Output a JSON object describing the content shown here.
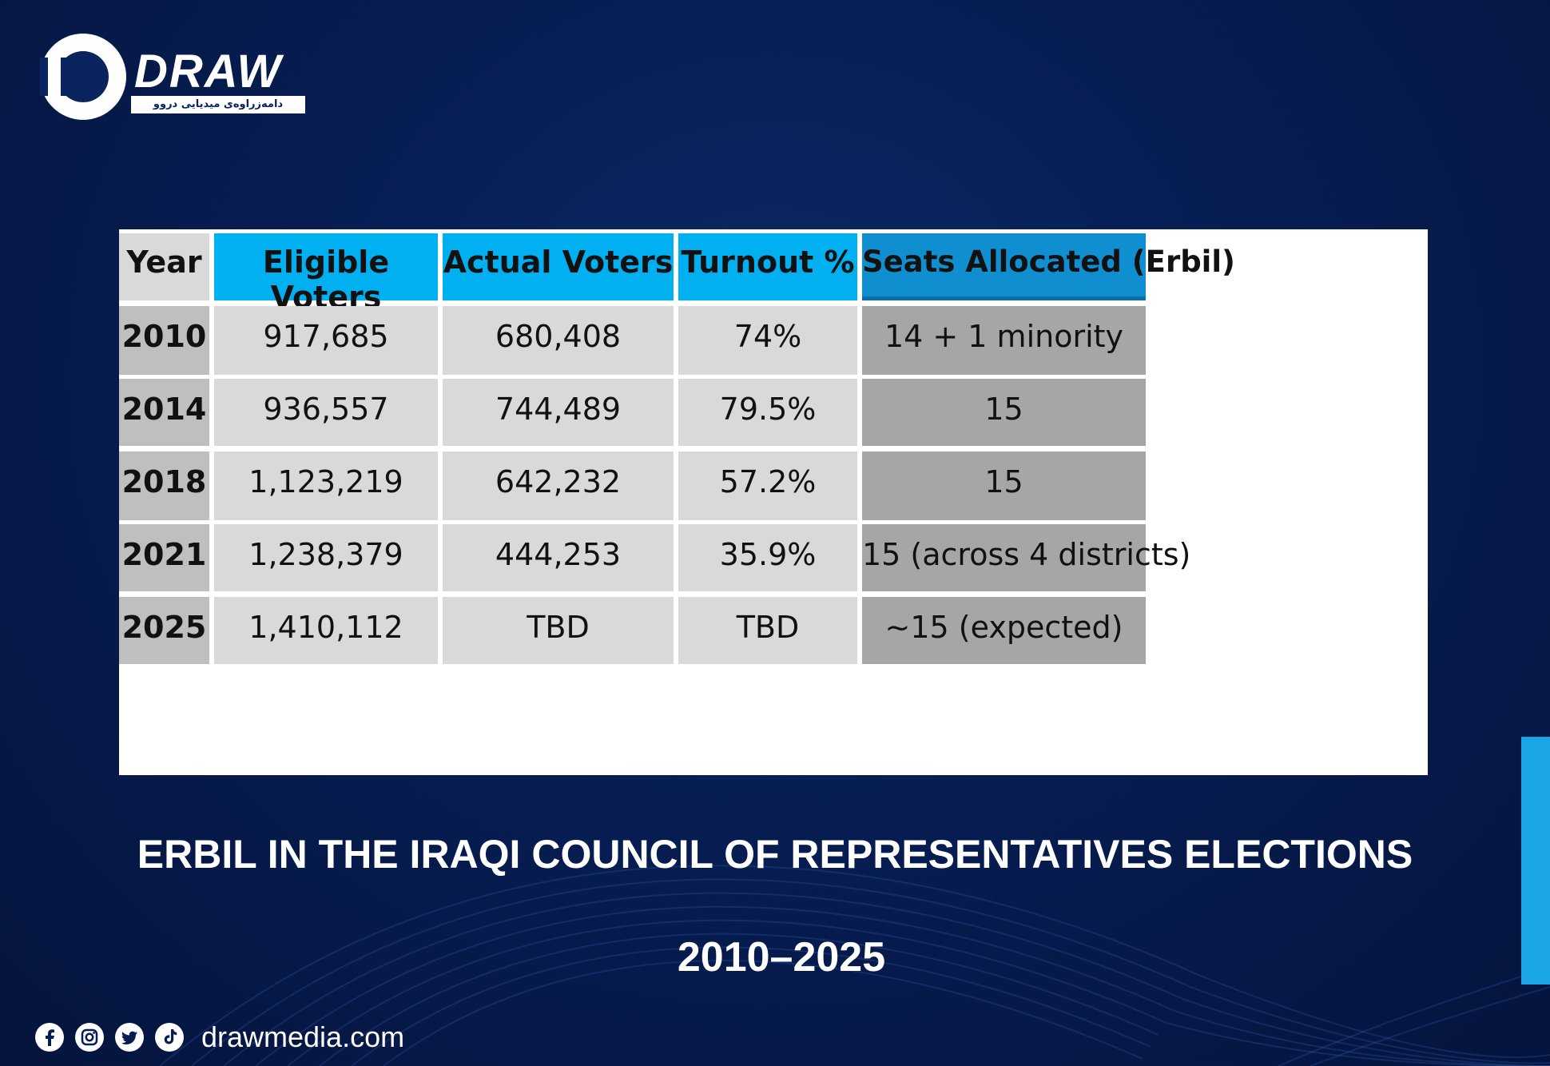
{
  "brand": {
    "logo_text": "DRAW",
    "logo_subtitle": "دامەزراوەی میدیایی دروو",
    "website": "drawmedia.com",
    "social_icons": [
      "facebook-icon",
      "instagram-icon",
      "twitter-icon",
      "tiktok-icon"
    ]
  },
  "colors": {
    "background": "#071d52",
    "header_blue": "#00b0f0",
    "header_dark_blue": "#0f8fd0",
    "cell_light": "#d9d9d9",
    "cell_mid": "#a6a6a6",
    "accent": "#1aa6e6"
  },
  "chart_data": {
    "type": "table",
    "columns": [
      "Year",
      "Eligible Voters",
      "Actual Voters",
      "Turnout %",
      "Seats Allocated (Erbil)"
    ],
    "rows": [
      [
        "2010",
        "917,685",
        "680,408",
        "74%",
        "14 + 1 minority"
      ],
      [
        "2014",
        "936,557",
        "744,489",
        "79.5%",
        "15"
      ],
      [
        "2018",
        "1,123,219",
        "642,232",
        "57.2%",
        "15"
      ],
      [
        "2021",
        "1,238,379",
        "444,253",
        "35.9%",
        "15 (across 4 districts)"
      ],
      [
        "2025",
        "1,410,112",
        "TBD",
        "TBD",
        "~15 (expected)"
      ]
    ],
    "title": "ERBIL IN THE IRAQI COUNCIL OF REPRESENTATIVES ELECTIONS",
    "subtitle": "2010–2025"
  }
}
